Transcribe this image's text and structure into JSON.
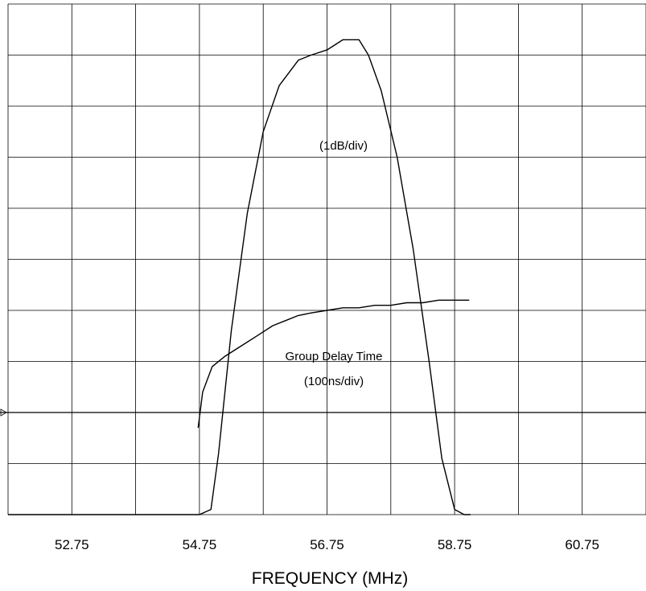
{
  "chart_data": {
    "type": "line",
    "xlabel": "FREQUENCY (MHz)",
    "x_tick_labels": [
      "52.75",
      "54.75",
      "56.75",
      "58.75",
      "60.75"
    ],
    "xlim": [
      51.75,
      61.75
    ],
    "grid": true,
    "grid_divisions": {
      "x": 10,
      "y": 10
    },
    "annotations": [
      {
        "id": "amplitude-scale",
        "text": "(1dB/div)"
      },
      {
        "id": "delay-title",
        "text": "Group Delay Time"
      },
      {
        "id": "delay-scale",
        "text": "(100ns/div)"
      }
    ],
    "series": [
      {
        "id": "amplitude",
        "units": "divisions",
        "x": [
          51.75,
          54.75,
          54.93,
          55.05,
          55.25,
          55.5,
          55.75,
          56.0,
          56.3,
          56.5,
          56.75,
          57.0,
          57.25,
          57.4,
          57.6,
          57.85,
          58.1,
          58.35,
          58.55,
          58.75,
          58.9,
          59.0
        ],
        "y": [
          0.0,
          0.0,
          0.1,
          1.2,
          3.6,
          5.9,
          7.5,
          8.4,
          8.9,
          9.0,
          9.1,
          9.3,
          9.3,
          9.0,
          8.3,
          7.0,
          5.2,
          3.0,
          1.1,
          0.1,
          0.0,
          0.0
        ]
      },
      {
        "id": "group-delay",
        "units": "divisions",
        "x": [
          54.73,
          54.8,
          54.95,
          55.15,
          55.4,
          55.65,
          55.9,
          56.1,
          56.3,
          56.5,
          56.75,
          57.0,
          57.25,
          57.5,
          57.75,
          58.0,
          58.25,
          58.5,
          58.75,
          58.98
        ],
        "y": [
          1.7,
          2.4,
          2.9,
          3.1,
          3.3,
          3.5,
          3.7,
          3.8,
          3.9,
          3.95,
          4.0,
          4.05,
          4.05,
          4.1,
          4.1,
          4.15,
          4.15,
          4.2,
          4.2,
          4.2
        ]
      }
    ],
    "reference_level_div": 2
  }
}
